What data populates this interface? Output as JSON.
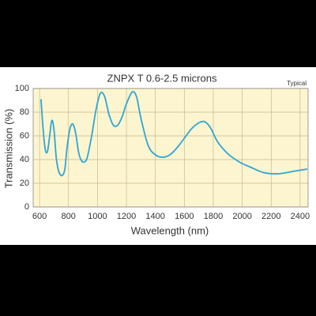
{
  "chart_data": {
    "type": "line",
    "title": "ZNPX T 0.6-2.5 microns",
    "annotation": "Typical",
    "x_label": "Wavelength (nm)",
    "y_label": "Transmission  (%)",
    "xlim": [
      556,
      2455
    ],
    "ylim": [
      0,
      100
    ],
    "xticks": [
      600,
      800,
      1000,
      1200,
      1400,
      1600,
      1800,
      2000,
      2200,
      2400
    ],
    "yticks": [
      0,
      20,
      40,
      60,
      80,
      100
    ],
    "grid": true,
    "series": [
      {
        "name": "ZNPX",
        "color": "#2ea6d6",
        "x": [
          610,
          625,
          640,
          655,
          670,
          685,
          700,
          715,
          730,
          745,
          760,
          775,
          790,
          810,
          830,
          850,
          870,
          890,
          910,
          930,
          960,
          990,
          1020,
          1050,
          1080,
          1110,
          1140,
          1170,
          1200,
          1240,
          1270,
          1300,
          1350,
          1400,
          1450,
          1500,
          1550,
          1600,
          1650,
          1700,
          1740,
          1780,
          1830,
          1900,
          1980,
          2050,
          2150,
          2250,
          2350,
          2450
        ],
        "values": [
          91,
          65,
          48,
          47,
          60,
          73,
          65,
          42,
          31,
          27,
          27,
          32,
          50,
          66,
          70,
          62,
          46,
          39,
          38,
          42,
          60,
          82,
          96,
          93,
          78,
          69,
          69,
          76,
          87,
          97,
          93,
          75,
          52,
          44,
          42,
          44,
          50,
          58,
          66,
          71,
          72,
          67,
          55,
          45,
          38,
          34,
          29,
          28,
          30,
          32
        ]
      }
    ]
  }
}
